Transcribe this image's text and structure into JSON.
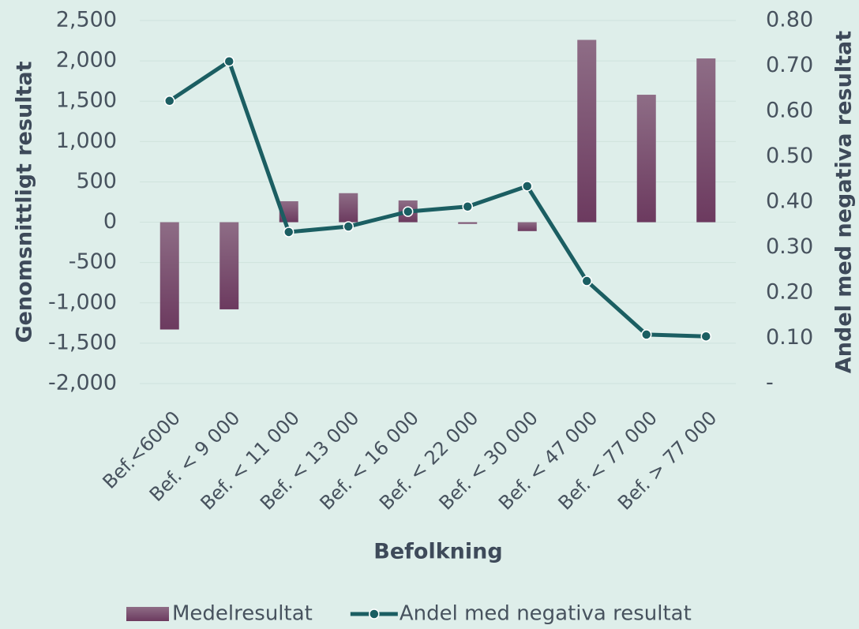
{
  "chart_data": {
    "type": "bar-line",
    "x_label": "Befolkning",
    "y_label": "Genomsnittligt resultat",
    "y2_label": "Andel med negativa resultat",
    "categories": [
      "Bef.<6000",
      "Bef. < 9 000",
      "Bef. < 11 000",
      "Bef. < 13 000",
      "Bef. < 16 000",
      "Bef. < 22 000",
      "Bef. < 30 000",
      "Bef. < 47 000",
      "Bef. < 77 000",
      "Bef. > 77 000"
    ],
    "series": [
      {
        "name": "Medelresultat",
        "type": "bar",
        "color": "#7a4a6e",
        "values": [
          -1330,
          -1080,
          260,
          360,
          270,
          -20,
          -110,
          2260,
          1580,
          2030
        ]
      },
      {
        "name": "Andel med negativa resultat",
        "type": "line",
        "axis": "y2",
        "color": "#1b5e62",
        "values": [
          0.623,
          0.71,
          0.334,
          0.346,
          0.379,
          0.39,
          0.435,
          0.226,
          0.108,
          0.104
        ]
      }
    ],
    "ylim": [
      -2000,
      2500
    ],
    "yticks": [
      {
        "value": -2000,
        "label": "-2,000"
      },
      {
        "value": -1500,
        "label": "-1,500"
      },
      {
        "value": -1000,
        "label": "-1,000"
      },
      {
        "value": -500,
        "label": "-500"
      },
      0,
      500,
      {
        "value": 1000,
        "label": "1,000"
      },
      {
        "value": 1500,
        "label": "1,500"
      },
      {
        "value": 2000,
        "label": "2,000"
      },
      {
        "value": 2500,
        "label": "2,500"
      }
    ],
    "y2lim": [
      0,
      0.8
    ],
    "y2ticks": [
      {
        "value": 0,
        "label": "-"
      },
      {
        "value": 0.1,
        "label": "0.10"
      },
      {
        "value": 0.2,
        "label": "0.20"
      },
      {
        "value": 0.3,
        "label": "0.30"
      },
      {
        "value": 0.4,
        "label": "0.40"
      },
      {
        "value": 0.5,
        "label": "0.50"
      },
      {
        "value": 0.6,
        "label": "0.60"
      },
      {
        "value": 0.7,
        "label": "0.70"
      },
      {
        "value": 0.8,
        "label": "0.80"
      }
    ],
    "grid": true,
    "legend": "bottom"
  }
}
